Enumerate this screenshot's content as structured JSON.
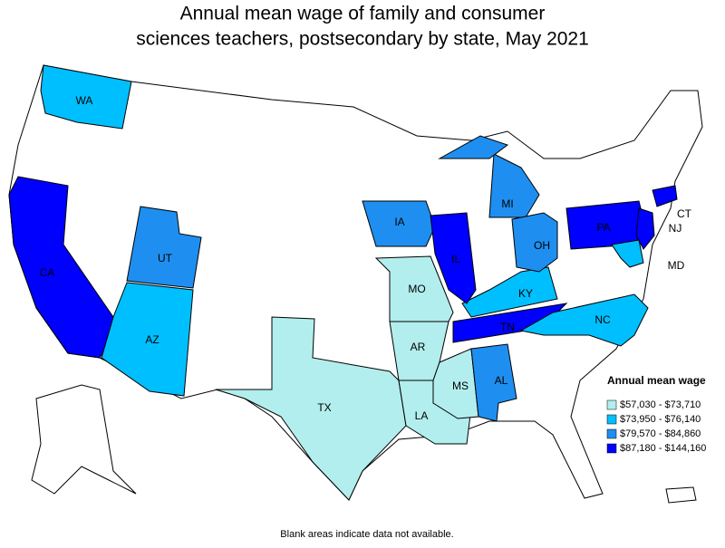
{
  "title": [
    "Annual mean wage of family and consumer",
    "sciences teachers, postsecondary by state, May 2021"
  ],
  "legend": {
    "title": "Annual mean wage",
    "items": [
      {
        "label": "$57,030 - $73,710",
        "color": "#b2eeee"
      },
      {
        "label": "$73,950 - $76,140",
        "color": "#00bfff"
      },
      {
        "label": "$79,570 - $84,860",
        "color": "#1e8ff0"
      },
      {
        "label": "$87,180 - $144,160",
        "color": "#0000ff"
      }
    ]
  },
  "states": [
    {
      "label": "WA",
      "color": "#00bfff"
    },
    {
      "label": "CA",
      "color": "#0000ff"
    },
    {
      "label": "UT",
      "color": "#1e8ff0"
    },
    {
      "label": "AZ",
      "color": "#00bfff"
    },
    {
      "label": "TX",
      "color": "#b2eeee"
    },
    {
      "label": "MO",
      "color": "#b2eeee"
    },
    {
      "label": "AR",
      "color": "#b2eeee"
    },
    {
      "label": "LA",
      "color": "#b2eeee"
    },
    {
      "label": "MS",
      "color": "#b2eeee"
    },
    {
      "label": "AL",
      "color": "#1e8ff0"
    },
    {
      "label": "TN",
      "color": "#0000ff"
    },
    {
      "label": "KY",
      "color": "#00bfff"
    },
    {
      "label": "NC",
      "color": "#00bfff"
    },
    {
      "label": "IA",
      "color": "#1e8ff0"
    },
    {
      "label": "IL",
      "color": "#0000ff"
    },
    {
      "label": "MI",
      "color": "#1e8ff0"
    },
    {
      "label": "OH",
      "color": "#1e8ff0"
    },
    {
      "label": "PA",
      "color": "#0000ff"
    },
    {
      "label": "NJ",
      "color": "#0000ff"
    },
    {
      "label": "CT",
      "color": "#0000ff"
    },
    {
      "label": "MD",
      "color": "#00bfff"
    }
  ],
  "footnote": "Blank areas indicate data not available."
}
